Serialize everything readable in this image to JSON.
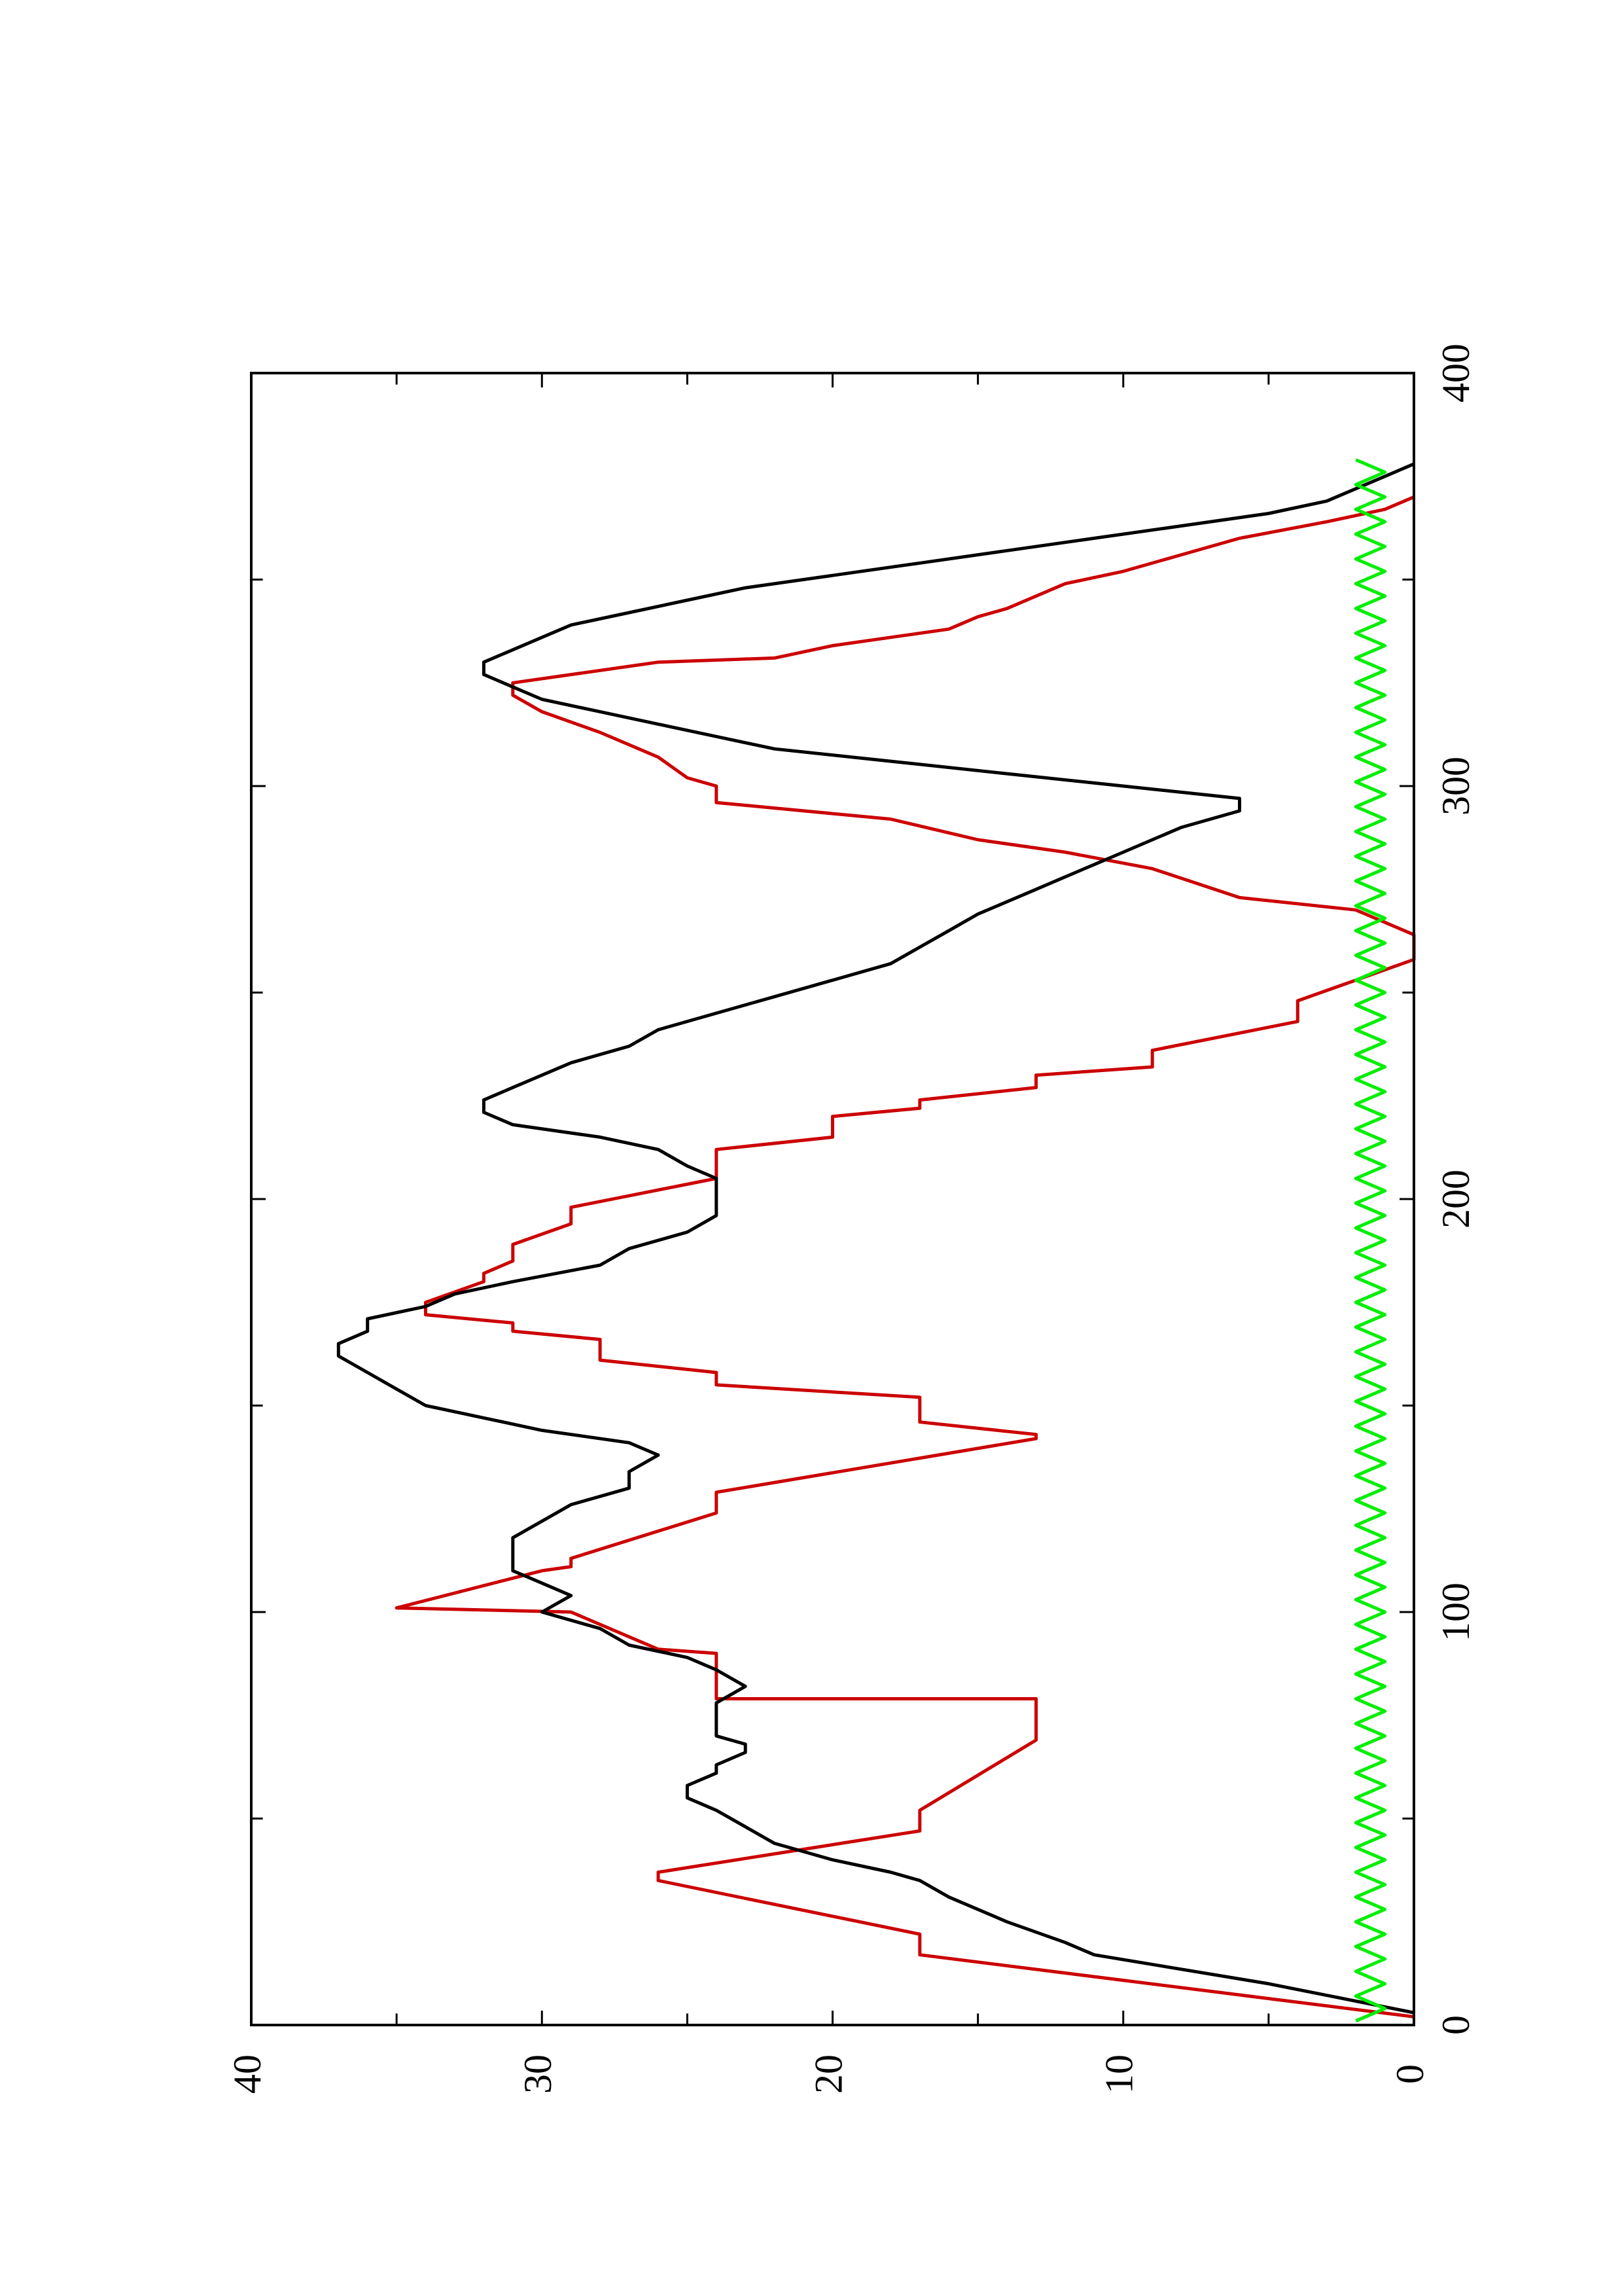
{
  "chart_data": {
    "type": "line",
    "orientation": "rotated-90-ccw",
    "title": "",
    "xlabel": "",
    "ylabel": "",
    "xlim": [
      0,
      400
    ],
    "ylim": [
      0,
      40
    ],
    "x_ticks": [
      0,
      100,
      200,
      300,
      400
    ],
    "y_ticks": [
      0,
      10,
      20,
      30,
      40
    ],
    "x_tick_labels": [
      "0",
      "100",
      "200",
      "300",
      "400"
    ],
    "y_tick_labels": [
      "0",
      "10",
      "20",
      "30",
      "40"
    ],
    "grid": false,
    "legend": "none",
    "series": [
      {
        "color": "#cc0000",
        "style": "step-ramp",
        "points": [
          [
            2,
            0
          ],
          [
            17,
            17
          ],
          [
            22,
            17
          ],
          [
            35,
            26
          ],
          [
            37,
            26
          ],
          [
            47,
            17
          ],
          [
            52,
            17
          ],
          [
            69,
            13
          ],
          [
            79,
            13
          ],
          [
            79,
            24
          ],
          [
            90,
            24
          ],
          [
            91,
            26
          ],
          [
            100,
            29
          ],
          [
            101,
            35
          ],
          [
            110,
            30
          ],
          [
            111,
            29
          ],
          [
            113,
            29
          ],
          [
            124,
            24
          ],
          [
            129,
            24
          ],
          [
            142,
            13
          ],
          [
            143,
            13
          ],
          [
            146,
            17
          ],
          [
            152,
            17
          ],
          [
            155,
            24
          ],
          [
            158,
            24
          ],
          [
            161,
            28
          ],
          [
            166,
            28
          ],
          [
            168,
            31
          ],
          [
            170,
            31
          ],
          [
            172,
            34
          ],
          [
            175,
            34
          ],
          [
            180,
            32
          ],
          [
            182,
            32
          ],
          [
            185,
            31
          ],
          [
            189,
            31
          ],
          [
            194,
            29
          ],
          [
            198,
            29
          ],
          [
            205,
            24
          ],
          [
            212,
            24
          ],
          [
            215,
            20
          ],
          [
            220,
            20
          ],
          [
            222,
            17
          ],
          [
            224,
            17
          ],
          [
            227,
            13
          ],
          [
            230,
            13
          ],
          [
            232,
            9
          ],
          [
            236,
            9
          ],
          [
            243,
            4
          ],
          [
            248,
            4
          ],
          [
            258,
            0
          ],
          [
            258,
            0
          ],
          [
            264,
            0
          ],
          [
            270,
            2
          ],
          [
            273,
            6
          ],
          [
            280,
            9
          ],
          [
            284,
            12
          ],
          [
            287,
            15
          ],
          [
            292,
            18
          ],
          [
            296,
            24
          ],
          [
            300,
            24
          ],
          [
            302,
            25
          ],
          [
            307,
            26
          ],
          [
            313,
            28
          ],
          [
            318,
            30
          ],
          [
            322,
            31
          ],
          [
            325,
            31
          ],
          [
            330,
            26
          ],
          [
            331,
            22
          ],
          [
            334,
            20
          ],
          [
            336,
            18
          ],
          [
            338,
            16
          ],
          [
            341,
            15
          ],
          [
            343,
            14
          ],
          [
            349,
            12
          ],
          [
            352,
            10
          ],
          [
            356,
            8
          ],
          [
            360,
            6
          ],
          [
            364,
            3
          ],
          [
            367,
            1
          ],
          [
            370,
            0
          ]
        ]
      },
      {
        "color": "#000000",
        "style": "line",
        "points": [
          [
            3,
            0
          ],
          [
            10,
            5
          ],
          [
            17,
            11
          ],
          [
            20,
            12
          ],
          [
            25,
            14
          ],
          [
            28,
            15
          ],
          [
            31,
            16
          ],
          [
            35,
            17
          ],
          [
            37,
            18
          ],
          [
            40,
            20
          ],
          [
            44,
            22
          ],
          [
            48,
            23
          ],
          [
            52,
            24
          ],
          [
            55,
            25
          ],
          [
            58,
            25
          ],
          [
            61,
            24
          ],
          [
            63,
            24
          ],
          [
            66,
            23
          ],
          [
            68,
            23
          ],
          [
            70,
            24
          ],
          [
            74,
            24
          ],
          [
            78,
            24
          ],
          [
            82,
            23
          ],
          [
            86,
            24
          ],
          [
            89,
            25
          ],
          [
            92,
            27
          ],
          [
            96,
            28
          ],
          [
            100,
            30
          ],
          [
            104,
            29
          ],
          [
            107,
            30
          ],
          [
            110,
            31
          ],
          [
            114,
            31
          ],
          [
            118,
            31
          ],
          [
            122,
            30
          ],
          [
            126,
            29
          ],
          [
            130,
            27
          ],
          [
            134,
            27
          ],
          [
            138,
            26
          ],
          [
            141,
            27
          ],
          [
            144,
            30
          ],
          [
            147,
            32
          ],
          [
            150,
            34
          ],
          [
            154,
            35
          ],
          [
            158,
            36
          ],
          [
            162,
            37
          ],
          [
            165,
            37
          ],
          [
            168,
            36
          ],
          [
            171,
            36
          ],
          [
            174,
            34
          ],
          [
            177,
            33
          ],
          [
            180,
            31
          ],
          [
            184,
            28
          ],
          [
            188,
            27
          ],
          [
            192,
            25
          ],
          [
            196,
            24
          ],
          [
            199,
            24
          ],
          [
            202,
            24
          ],
          [
            205,
            24
          ],
          [
            208,
            25
          ],
          [
            212,
            26
          ],
          [
            215,
            28
          ],
          [
            218,
            31
          ],
          [
            221,
            32
          ],
          [
            224,
            32
          ],
          [
            227,
            31
          ],
          [
            230,
            30
          ],
          [
            233,
            29
          ],
          [
            237,
            27
          ],
          [
            241,
            26
          ],
          [
            245,
            24
          ],
          [
            249,
            22
          ],
          [
            253,
            20
          ],
          [
            257,
            18
          ],
          [
            261,
            17
          ],
          [
            265,
            16
          ],
          [
            269,
            15
          ],
          [
            272,
            14
          ],
          [
            275,
            13
          ],
          [
            278,
            12
          ],
          [
            281,
            11
          ],
          [
            284,
            10
          ],
          [
            287,
            9
          ],
          [
            290,
            8
          ],
          [
            292,
            7
          ],
          [
            294,
            6
          ],
          [
            297,
            6
          ],
          [
            300,
            10
          ],
          [
            303,
            14
          ],
          [
            306,
            18
          ],
          [
            309,
            22
          ],
          [
            312,
            24
          ],
          [
            315,
            26
          ],
          [
            318,
            28
          ],
          [
            321,
            30
          ],
          [
            324,
            31
          ],
          [
            327,
            32
          ],
          [
            330,
            32
          ],
          [
            333,
            31
          ],
          [
            336,
            30
          ],
          [
            339,
            29
          ],
          [
            342,
            27
          ],
          [
            345,
            25
          ],
          [
            348,
            23
          ],
          [
            351,
            20
          ],
          [
            354,
            17
          ],
          [
            357,
            14
          ],
          [
            360,
            11
          ],
          [
            363,
            8
          ],
          [
            366,
            5
          ],
          [
            369,
            3
          ],
          [
            372,
            2
          ],
          [
            375,
            1
          ],
          [
            378,
            0
          ]
        ]
      },
      {
        "color": "#00ee00",
        "style": "line",
        "points": [
          [
            1,
            2
          ],
          [
            4,
            1
          ],
          [
            7,
            2
          ],
          [
            10,
            1
          ],
          [
            13,
            2
          ],
          [
            16,
            1
          ],
          [
            19,
            2
          ],
          [
            22,
            1
          ],
          [
            25,
            2
          ],
          [
            28,
            1
          ],
          [
            31,
            2
          ],
          [
            34,
            1
          ],
          [
            37,
            2
          ],
          [
            40,
            1
          ],
          [
            43,
            2
          ],
          [
            46,
            1
          ],
          [
            49,
            2
          ],
          [
            52,
            1
          ],
          [
            55,
            2
          ],
          [
            58,
            1
          ],
          [
            61,
            2
          ],
          [
            64,
            1
          ],
          [
            67,
            2
          ],
          [
            70,
            1
          ],
          [
            73,
            2
          ],
          [
            76,
            1
          ],
          [
            79,
            2
          ],
          [
            82,
            1
          ],
          [
            85,
            2
          ],
          [
            88,
            1
          ],
          [
            91,
            2
          ],
          [
            94,
            1
          ],
          [
            97,
            2
          ],
          [
            100,
            1
          ],
          [
            103,
            2
          ],
          [
            106,
            1
          ],
          [
            109,
            2
          ],
          [
            112,
            1
          ],
          [
            115,
            2
          ],
          [
            118,
            1
          ],
          [
            121,
            2
          ],
          [
            124,
            1
          ],
          [
            127,
            2
          ],
          [
            130,
            1
          ],
          [
            133,
            2
          ],
          [
            136,
            1
          ],
          [
            139,
            2
          ],
          [
            142,
            1
          ],
          [
            145,
            2
          ],
          [
            148,
            1
          ],
          [
            151,
            2
          ],
          [
            154,
            1
          ],
          [
            157,
            2
          ],
          [
            160,
            1
          ],
          [
            163,
            2
          ],
          [
            166,
            1
          ],
          [
            169,
            2
          ],
          [
            172,
            1
          ],
          [
            175,
            2
          ],
          [
            178,
            1
          ],
          [
            181,
            2
          ],
          [
            184,
            1
          ],
          [
            187,
            2
          ],
          [
            190,
            1
          ],
          [
            193,
            2
          ],
          [
            196,
            1
          ],
          [
            199,
            2
          ],
          [
            202,
            1
          ],
          [
            205,
            2
          ],
          [
            208,
            1
          ],
          [
            211,
            2
          ],
          [
            214,
            1
          ],
          [
            217,
            2
          ],
          [
            220,
            1
          ],
          [
            223,
            2
          ],
          [
            226,
            1
          ],
          [
            229,
            2
          ],
          [
            232,
            1
          ],
          [
            235,
            2
          ],
          [
            238,
            1
          ],
          [
            241,
            2
          ],
          [
            244,
            1
          ],
          [
            247,
            2
          ],
          [
            250,
            1
          ],
          [
            253,
            2
          ],
          [
            256,
            1
          ],
          [
            259,
            2
          ],
          [
            262,
            1
          ],
          [
            265,
            2
          ],
          [
            268,
            1
          ],
          [
            271,
            2
          ],
          [
            274,
            1
          ],
          [
            277,
            2
          ],
          [
            280,
            1
          ],
          [
            283,
            2
          ],
          [
            286,
            1
          ],
          [
            289,
            2
          ],
          [
            292,
            1
          ],
          [
            295,
            2
          ],
          [
            298,
            1
          ],
          [
            301,
            2
          ],
          [
            304,
            1
          ],
          [
            307,
            2
          ],
          [
            310,
            1
          ],
          [
            313,
            2
          ],
          [
            316,
            1
          ],
          [
            319,
            2
          ],
          [
            322,
            1
          ],
          [
            325,
            2
          ],
          [
            328,
            1
          ],
          [
            331,
            2
          ],
          [
            334,
            1
          ],
          [
            337,
            2
          ],
          [
            340,
            1
          ],
          [
            343,
            2
          ],
          [
            346,
            1
          ],
          [
            349,
            2
          ],
          [
            352,
            1
          ],
          [
            355,
            2
          ],
          [
            358,
            1
          ],
          [
            361,
            2
          ],
          [
            364,
            1
          ],
          [
            367,
            2
          ],
          [
            370,
            1
          ],
          [
            373,
            2
          ],
          [
            376,
            1
          ],
          [
            379,
            2
          ]
        ]
      }
    ]
  }
}
